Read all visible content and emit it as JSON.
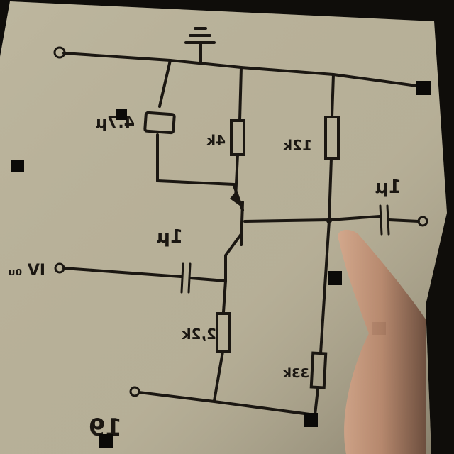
{
  "photo": {
    "subject": "hand-drawn transistor amplifier schematic on paper, photographed mirrored",
    "paper_color": "#b9b29a",
    "ink_color": "#1b1712",
    "background_color": "#0f0d0a",
    "skin_color": "#c09276"
  },
  "schematic": {
    "labels": {
      "input_caption": "IV ₀ᵤ",
      "input_capacitor": "1μ",
      "supply_capacitor": "4.7μ",
      "emitter_resistor": "4k",
      "divider_top_resistor": "12k",
      "divider_bottom_resistor": "33k",
      "collector_resistor": "2,2k",
      "output_capacitor": "1μ",
      "page_number": "19"
    }
  }
}
